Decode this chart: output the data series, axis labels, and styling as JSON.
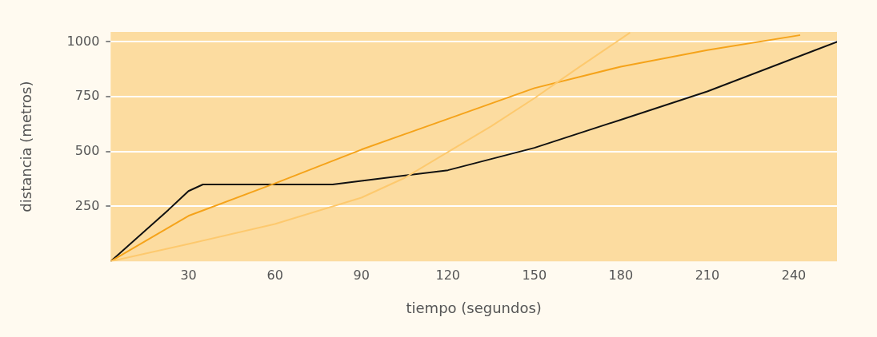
{
  "chart_data": {
    "type": "line",
    "xlabel": "tiempo (segundos)",
    "ylabel": "distancia (metros)",
    "xlim": [
      3,
      255
    ],
    "xticks": [
      30,
      60,
      90,
      120,
      150,
      180,
      210,
      240
    ],
    "ylim": [
      0,
      1045
    ],
    "yticks": [
      250,
      500,
      750,
      1000
    ],
    "grid": "y",
    "marker": "none",
    "line_style": "solid",
    "series": [
      {
        "color": "#fdc96e",
        "x": [
          3,
          30,
          60,
          90,
          105,
          120,
          135,
          150,
          165,
          183
        ],
        "values": [
          0,
          79,
          170,
          290,
          380,
          498,
          615,
          743,
          880,
          1040
        ]
      },
      {
        "color": "#f5a31a",
        "x": [
          3,
          30,
          60,
          90,
          120,
          150,
          180,
          210,
          242
        ],
        "values": [
          0,
          207,
          355,
          509,
          649,
          789,
          887,
          962,
          1030
        ]
      },
      {
        "color": "#111111",
        "x": [
          3,
          23,
          30,
          35,
          80,
          90,
          120,
          150,
          180,
          210,
          255
        ],
        "values": [
          0,
          234,
          320,
          350,
          350,
          366,
          415,
          517,
          645,
          774,
          1000
        ]
      }
    ]
  }
}
